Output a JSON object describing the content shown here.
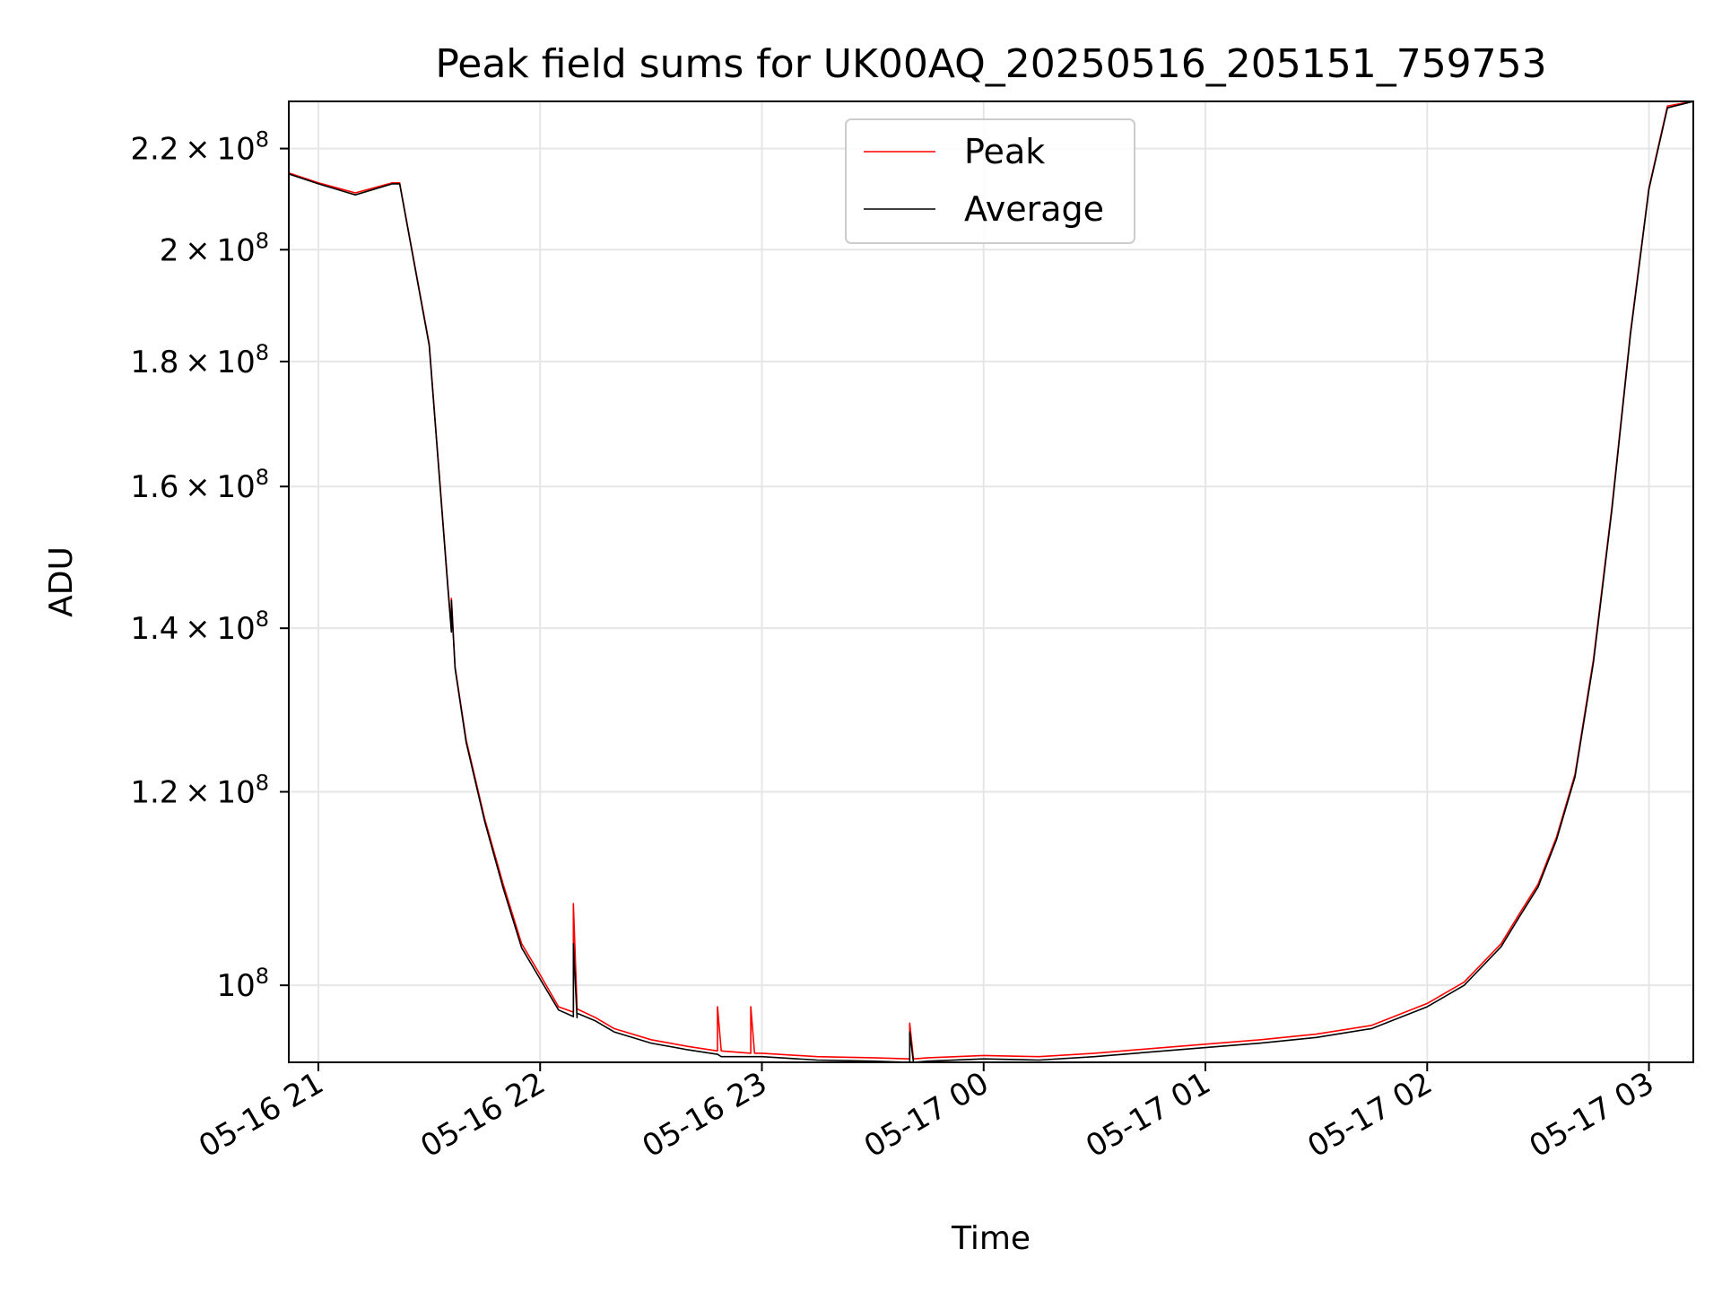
{
  "chart_data": {
    "type": "line",
    "title": "Peak field sums for UK00AQ_20250516_205151_759753",
    "xlabel": "Time",
    "ylabel": "ADU",
    "y_scale": "log",
    "xlim": [
      "2025-05-16 20:52",
      "2025-05-17 03:12"
    ],
    "ylim": [
      93000000,
      230000000
    ],
    "grid": true,
    "legend_position": "upper center",
    "x_ticks": [
      {
        "t": "2025-05-16 21:00",
        "label": "05-16 21"
      },
      {
        "t": "2025-05-16 22:00",
        "label": "05-16 22"
      },
      {
        "t": "2025-05-16 23:00",
        "label": "05-16 23"
      },
      {
        "t": "2025-05-17 00:00",
        "label": "05-17 00"
      },
      {
        "t": "2025-05-17 01:00",
        "label": "05-17 01"
      },
      {
        "t": "2025-05-17 02:00",
        "label": "05-17 02"
      },
      {
        "t": "2025-05-17 03:00",
        "label": "05-17 03"
      }
    ],
    "y_ticks": [
      {
        "value": 100000000,
        "mantissa": "",
        "exp": "8"
      },
      {
        "value": 120000000,
        "mantissa": "1.2",
        "exp": "8"
      },
      {
        "value": 140000000,
        "mantissa": "1.4",
        "exp": "8"
      },
      {
        "value": 160000000,
        "mantissa": "1.6",
        "exp": "8"
      },
      {
        "value": 180000000,
        "mantissa": "1.8",
        "exp": "8"
      },
      {
        "value": 200000000,
        "mantissa": "2",
        "exp": "8"
      },
      {
        "value": 220000000,
        "mantissa": "2.2",
        "exp": "8"
      }
    ],
    "series": [
      {
        "name": "Peak",
        "color": "#ff0000",
        "x": [
          "2025-05-16 20:52",
          "2025-05-16 21:00",
          "2025-05-16 21:10",
          "2025-05-16 21:20",
          "2025-05-16 21:22",
          "2025-05-16 21:30",
          "2025-05-16 21:35",
          "2025-05-16 21:36",
          "2025-05-16 21:36",
          "2025-05-16 21:37",
          "2025-05-16 21:40",
          "2025-05-16 21:45",
          "2025-05-16 21:50",
          "2025-05-16 21:55",
          "2025-05-16 22:00",
          "2025-05-16 22:05",
          "2025-05-16 22:09",
          "2025-05-16 22:09",
          "2025-05-16 22:10",
          "2025-05-16 22:10",
          "2025-05-16 22:15",
          "2025-05-16 22:20",
          "2025-05-16 22:30",
          "2025-05-16 22:40",
          "2025-05-16 22:48",
          "2025-05-16 22:48",
          "2025-05-16 22:49",
          "2025-05-16 22:57",
          "2025-05-16 22:57",
          "2025-05-16 22:58",
          "2025-05-16 23:00",
          "2025-05-16 23:15",
          "2025-05-16 23:30",
          "2025-05-16 23:40",
          "2025-05-16 23:40",
          "2025-05-16 23:41",
          "2025-05-16 23:45",
          "2025-05-17 00:00",
          "2025-05-17 00:15",
          "2025-05-17 00:30",
          "2025-05-17 00:45",
          "2025-05-17 01:00",
          "2025-05-17 01:15",
          "2025-05-17 01:30",
          "2025-05-17 01:45",
          "2025-05-17 02:00",
          "2025-05-17 02:10",
          "2025-05-17 02:20",
          "2025-05-17 02:25",
          "2025-05-17 02:30",
          "2025-05-17 02:35",
          "2025-05-17 02:40",
          "2025-05-17 02:45",
          "2025-05-17 02:50",
          "2025-05-17 02:55",
          "2025-05-17 03:00",
          "2025-05-17 03:05",
          "2025-05-17 03:12"
        ],
        "y": [
          215000000,
          213000000,
          211000000,
          213000000,
          213000000,
          183000000,
          146000000,
          140000000,
          144000000,
          135000000,
          126000000,
          117000000,
          110000000,
          104000000,
          101000000,
          98000000,
          97500000,
          108000000,
          98000000,
          97800000,
          97000000,
          96000000,
          95000000,
          94400000,
          94000000,
          98000000,
          94000000,
          93800000,
          98000000,
          93800000,
          93800000,
          93500000,
          93400000,
          93300000,
          96500000,
          93300000,
          93400000,
          93600000,
          93500000,
          93800000,
          94200000,
          94600000,
          95000000,
          95500000,
          96300000,
          98300000,
          100300000,
          104000000,
          107000000,
          110000000,
          115000000,
          122000000,
          136000000,
          157000000,
          185000000,
          212000000,
          229000000,
          230000000
        ]
      },
      {
        "name": "Average",
        "color": "#000000",
        "x": [
          "2025-05-16 20:52",
          "2025-05-16 21:00",
          "2025-05-16 21:10",
          "2025-05-16 21:20",
          "2025-05-16 21:22",
          "2025-05-16 21:30",
          "2025-05-16 21:35",
          "2025-05-16 21:36",
          "2025-05-16 21:36",
          "2025-05-16 21:37",
          "2025-05-16 21:40",
          "2025-05-16 21:45",
          "2025-05-16 21:50",
          "2025-05-16 21:55",
          "2025-05-16 22:00",
          "2025-05-16 22:05",
          "2025-05-16 22:09",
          "2025-05-16 22:09",
          "2025-05-16 22:10",
          "2025-05-16 22:10",
          "2025-05-16 22:15",
          "2025-05-16 22:20",
          "2025-05-16 22:30",
          "2025-05-16 22:40",
          "2025-05-16 22:48",
          "2025-05-16 22:49",
          "2025-05-16 23:00",
          "2025-05-16 23:15",
          "2025-05-16 23:30",
          "2025-05-16 23:40",
          "2025-05-16 23:40",
          "2025-05-16 23:41",
          "2025-05-16 23:45",
          "2025-05-17 00:00",
          "2025-05-17 00:15",
          "2025-05-17 00:30",
          "2025-05-17 00:45",
          "2025-05-17 01:00",
          "2025-05-17 01:15",
          "2025-05-17 01:30",
          "2025-05-17 01:45",
          "2025-05-17 02:00",
          "2025-05-17 02:10",
          "2025-05-17 02:20",
          "2025-05-17 02:25",
          "2025-05-17 02:30",
          "2025-05-17 02:35",
          "2025-05-17 02:40",
          "2025-05-17 02:45",
          "2025-05-17 02:50",
          "2025-05-17 02:55",
          "2025-05-17 03:00",
          "2025-05-17 03:05",
          "2025-05-17 03:12"
        ],
        "y": [
          214800000,
          212800000,
          210600000,
          212800000,
          212800000,
          182700000,
          145700000,
          139500000,
          143700000,
          134800000,
          125700000,
          116700000,
          109600000,
          103600000,
          100600000,
          97700000,
          97100000,
          104000000,
          97000000,
          97400000,
          96700000,
          95700000,
          94700000,
          94100000,
          93700000,
          93500000,
          93500000,
          93200000,
          93100000,
          93000000,
          95700000,
          93000000,
          93100000,
          93300000,
          93200000,
          93500000,
          93900000,
          94300000,
          94700000,
          95200000,
          96000000,
          98000000,
          100000000,
          103700000,
          106700000,
          109700000,
          114700000,
          121700000,
          135600000,
          156600000,
          184600000,
          211700000,
          228600000,
          230000000
        ]
      }
    ]
  }
}
